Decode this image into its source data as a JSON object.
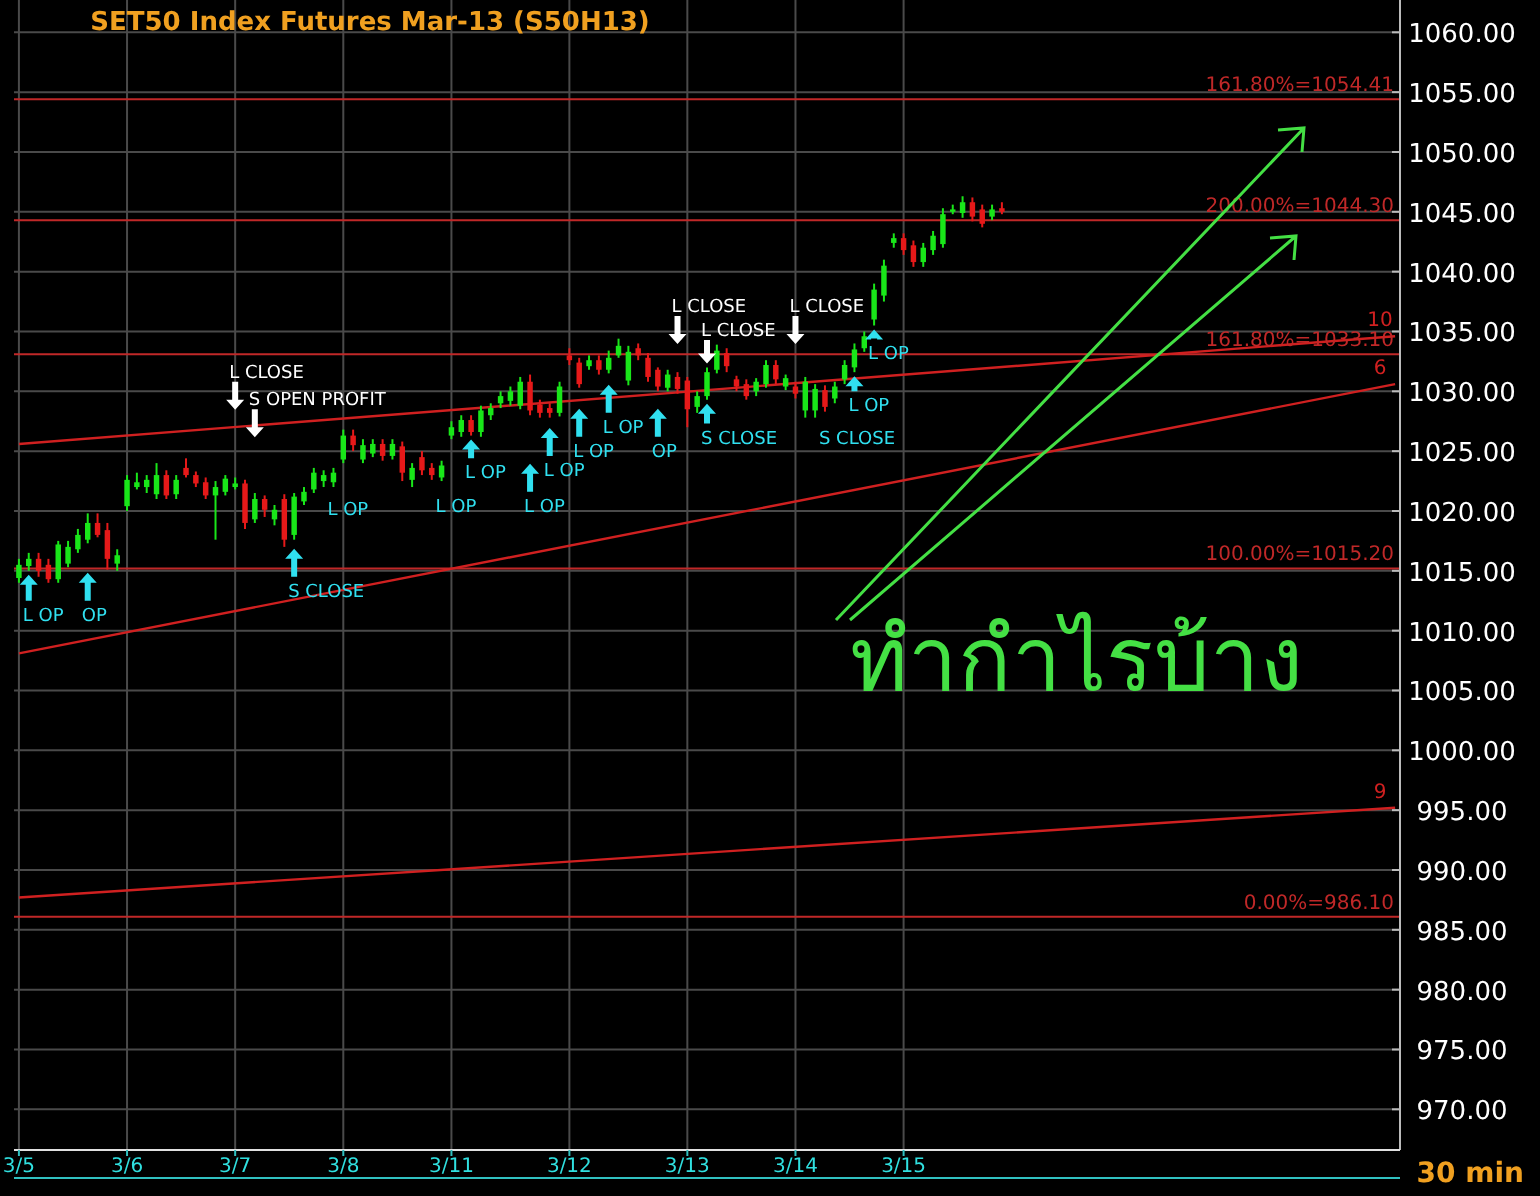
{
  "chart_data": {
    "type": "candlestick",
    "title": "SET50  Index Futures Mar-13  (S50H13)",
    "categories": [
      "3/5",
      null,
      null,
      null,
      null,
      null,
      null,
      null,
      null,
      null,
      null,
      "3/6",
      null,
      null,
      null,
      null,
      null,
      null,
      null,
      null,
      null,
      null,
      "3/7",
      null,
      null,
      null,
      null,
      null,
      null,
      null,
      null,
      null,
      null,
      "3/8",
      null,
      null,
      null,
      null,
      null,
      null,
      null,
      null,
      null,
      null,
      "3/11",
      null,
      null,
      null,
      null,
      null,
      null,
      null,
      null,
      null,
      null,
      null,
      "3/12",
      null,
      null,
      null,
      null,
      null,
      null,
      null,
      null,
      null,
      null,
      null,
      "3/13",
      null,
      null,
      null,
      null,
      null,
      null,
      null,
      null,
      null,
      null,
      "3/14",
      null,
      null,
      null,
      null,
      null,
      null,
      null,
      null,
      null,
      null,
      "3/15",
      null,
      null,
      null,
      null,
      null,
      null,
      null,
      null,
      null,
      null,
      null,
      null,
      null,
      null,
      null,
      null,
      null,
      null,
      null,
      null,
      null,
      null,
      null,
      null,
      null,
      null,
      null,
      null,
      null,
      null,
      null,
      null,
      null,
      null,
      null,
      null,
      null,
      null,
      null,
      null,
      null,
      null,
      null,
      null,
      null,
      null,
      null,
      null,
      null,
      null
    ],
    "ohlc": [
      [
        1014.4,
        1016,
        1014,
        1015.5
      ],
      [
        1015.4,
        1016.5,
        1015,
        1016
      ],
      [
        1016,
        1016.5,
        1014.5,
        1015
      ],
      [
        1015.5,
        1016,
        1014,
        1014.3
      ],
      [
        1014.3,
        1017.5,
        1014,
        1017.2
      ],
      [
        1015.6,
        1017.5,
        1015.3,
        1017
      ],
      [
        1016.8,
        1018.5,
        1016.5,
        1018
      ],
      [
        1017.6,
        1019.8,
        1017.3,
        1019
      ],
      [
        1019,
        1019.8,
        1017.8,
        1018
      ],
      [
        1018.4,
        1019,
        1015.1,
        1016
      ],
      [
        1015.6,
        1016.8,
        1015,
        1016.3
      ],
      [
        1020.4,
        1023,
        1020,
        1022.6
      ],
      [
        1022,
        1023.2,
        1021.8,
        1022.4
      ],
      [
        1022,
        1023,
        1021.5,
        1022.6
      ],
      [
        1021.4,
        1024,
        1021,
        1023
      ],
      [
        1023,
        1023.4,
        1021,
        1021.3
      ],
      [
        1021.4,
        1023,
        1021,
        1022.6
      ],
      [
        1023.6,
        1024.4,
        1022.8,
        1023
      ],
      [
        1023,
        1023.3,
        1022,
        1022.3
      ],
      [
        1022.4,
        1022.8,
        1021,
        1021.3
      ],
      [
        1021.3,
        1022.5,
        1017.6,
        1022
      ],
      [
        1021.6,
        1023,
        1021.3,
        1022.7
      ],
      [
        1022,
        1022.8,
        1021.8,
        1022.3
      ],
      [
        1022.3,
        1022.6,
        1018.5,
        1019
      ],
      [
        1019.3,
        1021.5,
        1019,
        1021
      ],
      [
        1021,
        1021.3,
        1019.5,
        1020.1
      ],
      [
        1019.3,
        1020.5,
        1018.8,
        1020.1
      ],
      [
        1021,
        1021.4,
        1017,
        1017.6
      ],
      [
        1018,
        1021.5,
        1017.6,
        1021.2
      ],
      [
        1020.8,
        1022,
        1020.5,
        1021.6
      ],
      [
        1021.8,
        1023.6,
        1021.5,
        1023.2
      ],
      [
        1022.5,
        1023.4,
        1022,
        1023
      ],
      [
        1022.4,
        1023.6,
        1022,
        1023.2
      ],
      [
        1024.3,
        1026.8,
        1024,
        1026.3
      ],
      [
        1026.3,
        1026.8,
        1025,
        1025.5
      ],
      [
        1024.3,
        1026,
        1024,
        1025.5
      ],
      [
        1024.8,
        1026,
        1024.5,
        1025.6
      ],
      [
        1025.6,
        1026,
        1024.2,
        1024.6
      ],
      [
        1024.6,
        1026,
        1024.3,
        1025.6
      ],
      [
        1025.4,
        1025.8,
        1022.5,
        1023.2
      ],
      [
        1022.6,
        1024,
        1022,
        1023.6
      ],
      [
        1024.5,
        1025,
        1023,
        1023.4
      ],
      [
        1023.6,
        1024,
        1022.6,
        1023
      ],
      [
        1022.8,
        1024.2,
        1022.5,
        1023.8
      ],
      [
        1026.3,
        1027.5,
        1026,
        1027
      ],
      [
        1026.6,
        1028,
        1026.2,
        1027.6
      ],
      [
        1027.6,
        1028,
        1026.3,
        1026.6
      ],
      [
        1026.6,
        1028.8,
        1026.2,
        1028.4
      ],
      [
        1028,
        1029,
        1027.6,
        1028.6
      ],
      [
        1029,
        1030,
        1028.6,
        1029.6
      ],
      [
        1029.2,
        1030.4,
        1028.8,
        1030
      ],
      [
        1028.8,
        1031.2,
        1028.5,
        1030.8
      ],
      [
        1030.8,
        1031.4,
        1028,
        1028.4
      ],
      [
        1028.9,
        1029.3,
        1027.8,
        1028.2
      ],
      [
        1028.6,
        1029,
        1027.8,
        1028.2
      ],
      [
        1028.2,
        1030.8,
        1027.9,
        1030.4
      ],
      [
        1033,
        1033.6,
        1032.2,
        1032.6
      ],
      [
        1032.4,
        1032.8,
        1030.3,
        1030.6
      ],
      [
        1032.1,
        1033,
        1031.8,
        1032.6
      ],
      [
        1032.6,
        1033,
        1031.4,
        1031.8
      ],
      [
        1031.8,
        1033.4,
        1031.5,
        1032.8
      ],
      [
        1033,
        1034.4,
        1032.8,
        1033.8
      ],
      [
        1030.9,
        1033.8,
        1030.5,
        1033.3
      ],
      [
        1033.6,
        1034,
        1032.6,
        1033
      ],
      [
        1032.8,
        1033.2,
        1030.8,
        1031.2
      ],
      [
        1031.8,
        1032,
        1030,
        1030.4
      ],
      [
        1030.3,
        1031.8,
        1030,
        1031.4
      ],
      [
        1031.2,
        1031.6,
        1029.8,
        1030.2
      ],
      [
        1030.9,
        1031.2,
        1027,
        1028.5
      ],
      [
        1028.7,
        1030,
        1028.2,
        1029.6
      ],
      [
        1029.6,
        1032,
        1029.3,
        1031.6
      ],
      [
        1031.8,
        1033.9,
        1031.5,
        1033.4
      ],
      [
        1033.2,
        1033.6,
        1031.6,
        1032.1
      ],
      [
        1031,
        1031.3,
        1030,
        1030.4
      ],
      [
        1030.6,
        1031,
        1029.3,
        1029.6
      ],
      [
        1030,
        1031.1,
        1029.6,
        1030.8
      ],
      [
        1030.6,
        1032.6,
        1030.3,
        1032.2
      ],
      [
        1032.2,
        1032.6,
        1030.6,
        1031
      ],
      [
        1030.4,
        1031.4,
        1030.1,
        1031.1
      ],
      [
        1030.4,
        1030.8,
        1029.4,
        1029.8
      ],
      [
        1028.4,
        1031.2,
        1027.8,
        1030.8
      ],
      [
        1028.4,
        1030.6,
        1027.8,
        1030.2
      ],
      [
        1030.1,
        1030.5,
        1028.3,
        1028.7
      ],
      [
        1029.4,
        1030.8,
        1029,
        1030.4
      ],
      [
        1031,
        1032.6,
        1030.6,
        1032.2
      ],
      [
        1032,
        1034,
        1031.6,
        1033.5
      ],
      [
        1033.6,
        1035,
        1033.3,
        1034.6
      ],
      [
        1036,
        1039,
        1035.5,
        1038.5
      ],
      [
        1038,
        1041,
        1037.5,
        1040.5
      ],
      [
        1042.4,
        1043.2,
        1042,
        1042.8
      ],
      [
        1042.8,
        1043.2,
        1041.4,
        1041.8
      ],
      [
        1042.2,
        1042.6,
        1040.4,
        1040.8
      ],
      [
        1040.8,
        1042.4,
        1040.4,
        1042
      ],
      [
        1041.8,
        1043.4,
        1041.4,
        1043
      ],
      [
        1042.3,
        1045.3,
        1042,
        1044.8
      ],
      [
        1045,
        1045.6,
        1044.8,
        1045.2
      ],
      [
        1044.9,
        1046.3,
        1044.5,
        1045.8
      ],
      [
        1045.8,
        1046.2,
        1044.2,
        1044.6
      ],
      [
        1045.2,
        1045.6,
        1043.7,
        1044
      ],
      [
        1044.6,
        1045.6,
        1044.3,
        1045.2
      ],
      [
        1045.3,
        1045.8,
        1044.8,
        1045
      ],
      null,
      null,
      null,
      null,
      null,
      null,
      null,
      null,
      null,
      null,
      null,
      null,
      null,
      null,
      null,
      null,
      null,
      null,
      null,
      null,
      null,
      null,
      null,
      null,
      null,
      null,
      null,
      null,
      null,
      null,
      null,
      null,
      null,
      null,
      null,
      null,
      null,
      null,
      null,
      null
    ],
    "ylim": [
      966.6,
      1062.7
    ],
    "yticks": [
      {
        "value": 970,
        "label": "970.00"
      },
      {
        "value": 975,
        "label": "975.00"
      },
      {
        "value": 980,
        "label": "980.00"
      },
      {
        "value": 985,
        "label": "985.00"
      },
      {
        "value": 990,
        "label": "990.00"
      },
      {
        "value": 995,
        "label": "995.00"
      },
      {
        "value": 1000,
        "label": "1000.00"
      },
      {
        "value": 1005,
        "label": "1005.00"
      },
      {
        "value": 1010,
        "label": "1010.00"
      },
      {
        "value": 1015,
        "label": "1015.00"
      },
      {
        "value": 1020,
        "label": "1020.00"
      },
      {
        "value": 1025,
        "label": "1025.00"
      },
      {
        "value": 1030,
        "label": "1030.00"
      },
      {
        "value": 1035,
        "label": "1035.00"
      },
      {
        "value": 1040,
        "label": "1040.00"
      },
      {
        "value": 1045,
        "label": "1045.00"
      },
      {
        "value": 1050,
        "label": "1050.00"
      },
      {
        "value": 1055,
        "label": "1055.00"
      },
      {
        "value": 1060,
        "label": "1060.00"
      }
    ],
    "grid": true,
    "series": [
      {
        "name": "10",
        "type": "line",
        "color": "#d02020",
        "values": [
          1025.6,
          null,
          null,
          null,
          null,
          null,
          null,
          null,
          null,
          null,
          null,
          null,
          null,
          null,
          null,
          null,
          null,
          null,
          null,
          null,
          null,
          null,
          null,
          null,
          null,
          null,
          null,
          null,
          null,
          null,
          null,
          null,
          null,
          null,
          null,
          null,
          null,
          null,
          null,
          null,
          null,
          null,
          null,
          null,
          null,
          null,
          null,
          null,
          null,
          null,
          null,
          null,
          null,
          null,
          null,
          null,
          null,
          null,
          null,
          null,
          null,
          null,
          null,
          null,
          null,
          null,
          null,
          null,
          null,
          null,
          null,
          null,
          null,
          null,
          null,
          null,
          null,
          null,
          null,
          null,
          null,
          null,
          null,
          null,
          null,
          null,
          null,
          null,
          null,
          null,
          null,
          null,
          null,
          null,
          null,
          null,
          null,
          null,
          null,
          null,
          null,
          null,
          null,
          null,
          null,
          null,
          null,
          null,
          null,
          null,
          null,
          null,
          null,
          null,
          null,
          null,
          null,
          null,
          null,
          null,
          null,
          null,
          null,
          null,
          null,
          null,
          null,
          null,
          null,
          null,
          null,
          null,
          null,
          null,
          null,
          null,
          null,
          null,
          null,
          null,
          1034.6
        ]
      },
      {
        "name": "6",
        "type": "line",
        "color": "#d02020",
        "values": [
          1008.1,
          null,
          null,
          null,
          null,
          null,
          null,
          null,
          null,
          null,
          null,
          null,
          null,
          null,
          null,
          null,
          null,
          null,
          null,
          null,
          null,
          null,
          null,
          null,
          null,
          null,
          null,
          null,
          null,
          null,
          null,
          null,
          null,
          null,
          null,
          null,
          null,
          null,
          null,
          null,
          null,
          null,
          null,
          null,
          null,
          null,
          null,
          null,
          null,
          null,
          null,
          null,
          null,
          null,
          null,
          null,
          null,
          null,
          null,
          null,
          null,
          null,
          null,
          null,
          null,
          null,
          null,
          null,
          null,
          null,
          null,
          null,
          null,
          null,
          null,
          null,
          null,
          null,
          null,
          null,
          null,
          null,
          null,
          null,
          null,
          null,
          null,
          null,
          null,
          null,
          null,
          null,
          null,
          null,
          null,
          null,
          null,
          null,
          null,
          null,
          null,
          null,
          null,
          null,
          null,
          null,
          null,
          null,
          null,
          null,
          null,
          null,
          null,
          null,
          null,
          null,
          null,
          null,
          null,
          null,
          null,
          null,
          null,
          null,
          null,
          null,
          null,
          null,
          null,
          null,
          null,
          null,
          null,
          null,
          null,
          null,
          null,
          null,
          null,
          null,
          1030.6
        ]
      },
      {
        "name": "9",
        "type": "line",
        "color": "#d02020",
        "values": [
          987.7,
          null,
          null,
          null,
          null,
          null,
          null,
          null,
          null,
          null,
          null,
          null,
          null,
          null,
          null,
          null,
          null,
          null,
          null,
          null,
          null,
          null,
          null,
          null,
          null,
          null,
          null,
          null,
          null,
          null,
          null,
          null,
          null,
          null,
          null,
          null,
          null,
          null,
          null,
          null,
          null,
          null,
          null,
          null,
          null,
          null,
          null,
          null,
          null,
          null,
          null,
          null,
          null,
          null,
          null,
          null,
          null,
          null,
          null,
          null,
          null,
          null,
          null,
          null,
          null,
          null,
          null,
          null,
          null,
          null,
          null,
          null,
          null,
          null,
          null,
          null,
          null,
          null,
          null,
          null,
          null,
          null,
          null,
          null,
          null,
          null,
          null,
          null,
          null,
          null,
          null,
          null,
          null,
          null,
          null,
          null,
          null,
          null,
          null,
          null,
          null,
          null,
          null,
          null,
          null,
          null,
          null,
          null,
          null,
          null,
          null,
          null,
          null,
          null,
          null,
          null,
          null,
          null,
          null,
          null,
          null,
          null,
          null,
          null,
          null,
          null,
          null,
          null,
          null,
          null,
          null,
          null,
          null,
          null,
          null,
          null,
          null,
          null,
          null,
          null,
          995.2
        ]
      }
    ],
    "ref_lines": [
      {
        "axis": "y",
        "value": 1054.41,
        "label": "161.80%=1054.41",
        "color": "#c02828"
      },
      {
        "axis": "y",
        "value": 1044.3,
        "label": "200.00%=1044.30",
        "color": "#c02828"
      },
      {
        "axis": "y",
        "value": 1033.1,
        "label": "161.80%=1033.10",
        "color": "#c02828"
      },
      {
        "axis": "y",
        "value": 1015.2,
        "label": "100.00%=1015.20",
        "color": "#c02828"
      },
      {
        "axis": "y",
        "value": 986.1,
        "label": "0.00%=986.10",
        "color": "#c02828"
      }
    ],
    "annotations": [
      "30  min",
      "ทำกำไรบ้าง",
      "L OP",
      "OP",
      "L CLOSE",
      "S OPEN PROFIT",
      "S CLOSE",
      "L OP",
      "L OP",
      "L OP",
      "L OP",
      "L OP",
      "L OP",
      "L OP",
      "OP",
      "L CLOSE",
      "S CLOSE",
      "L CLOSE",
      "L CLOSE",
      "S CLOSE",
      "L OP",
      "L OP"
    ]
  }
}
